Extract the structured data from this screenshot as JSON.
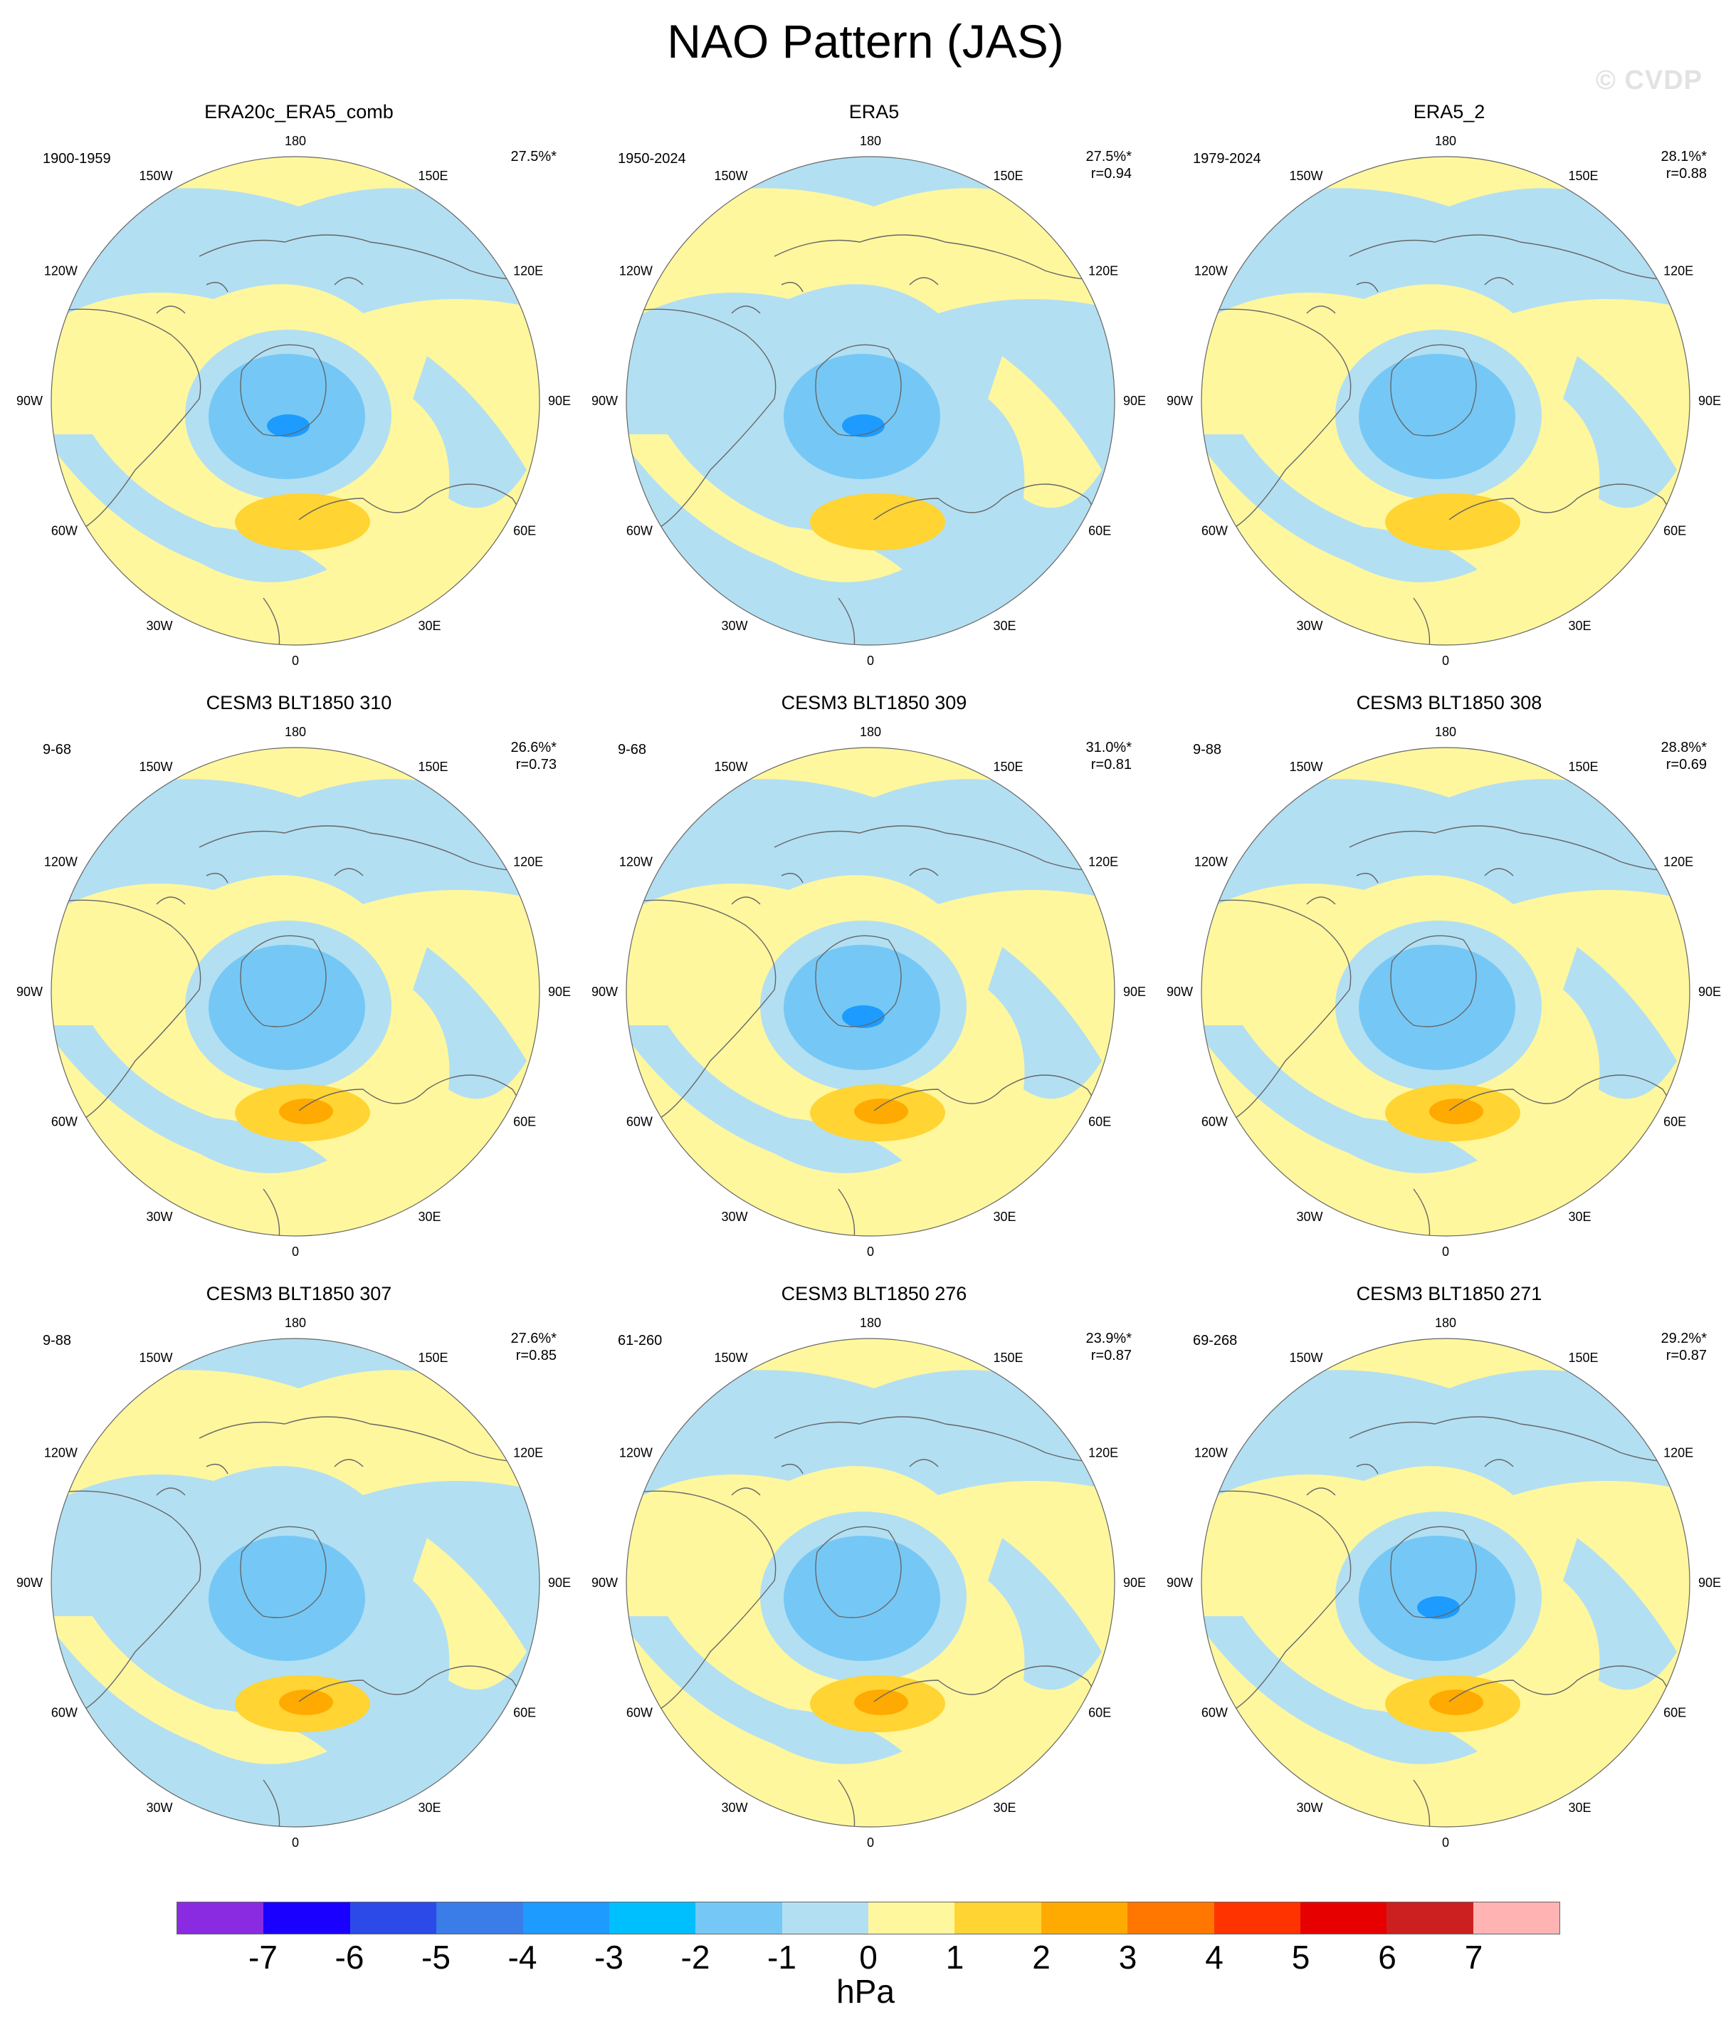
{
  "title": "NAO Pattern (JAS)",
  "watermark": "© CVDP",
  "units": "hPa",
  "lon_labels": [
    "180",
    "150E",
    "120E",
    "90E",
    "60E",
    "30E",
    "0",
    "30W",
    "60W",
    "90W",
    "120W",
    "150W"
  ],
  "colorbar": {
    "colors": [
      "#8a2be2",
      "#1a00ff",
      "#2b4ae8",
      "#3a7ce8",
      "#1e9bff",
      "#00bfff",
      "#75c8f5",
      "#b3dff2",
      "#fff79e",
      "#ffd433",
      "#ffaa00",
      "#ff7700",
      "#ff3300",
      "#e60000",
      "#cc2020",
      "#ffb3b3"
    ],
    "ticks": [
      "-7",
      "-6",
      "-5",
      "-4",
      "-3",
      "-2",
      "-1",
      "0",
      "1",
      "2",
      "3",
      "4",
      "5",
      "6",
      "7"
    ]
  },
  "palette": {
    "neg1": "#b3dff2",
    "neg2": "#75c8f5",
    "neg3": "#1e9bff",
    "pos1": "#fff79e",
    "pos2": "#ffd433",
    "pos3": "#ffaa00",
    "coast": "#666666"
  },
  "panels": [
    {
      "title": "ERA20c_ERA5_comb",
      "period": "1900-1959",
      "pct": "27.5%*",
      "r": "",
      "bg": "yellow",
      "low_level": 3,
      "high_level": 2
    },
    {
      "title": "ERA5",
      "period": "1950-2024",
      "pct": "27.5%*",
      "r": "r=0.94",
      "bg": "blue",
      "low_level": 3,
      "high_level": 2
    },
    {
      "title": "ERA5_2",
      "period": "1979-2024",
      "pct": "28.1%*",
      "r": "r=0.88",
      "bg": "yellow",
      "low_level": 2,
      "high_level": 2
    },
    {
      "title": "CESM3 BLT1850 310",
      "period": "9-68",
      "pct": "26.6%*",
      "r": "r=0.73",
      "bg": "yellow",
      "low_level": 2,
      "high_level": 3
    },
    {
      "title": "CESM3 BLT1850 309",
      "period": "9-68",
      "pct": "31.0%*",
      "r": "r=0.81",
      "bg": "yellow",
      "low_level": 3,
      "high_level": 3
    },
    {
      "title": "CESM3 BLT1850 308",
      "period": "9-88",
      "pct": "28.8%*",
      "r": "r=0.69",
      "bg": "yellow",
      "low_level": 2,
      "high_level": 3
    },
    {
      "title": "CESM3 BLT1850 307",
      "period": "9-88",
      "pct": "27.6%*",
      "r": "r=0.85",
      "bg": "blue",
      "low_level": 2,
      "high_level": 3
    },
    {
      "title": "CESM3 BLT1850 276",
      "period": "61-260",
      "pct": "23.9%*",
      "r": "r=0.87",
      "bg": "yellow",
      "low_level": 2,
      "high_level": 3
    },
    {
      "title": "CESM3 BLT1850 271",
      "period": "69-268",
      "pct": "29.2%*",
      "r": "r=0.87",
      "bg": "yellow",
      "low_level": 3,
      "high_level": 3
    }
  ]
}
